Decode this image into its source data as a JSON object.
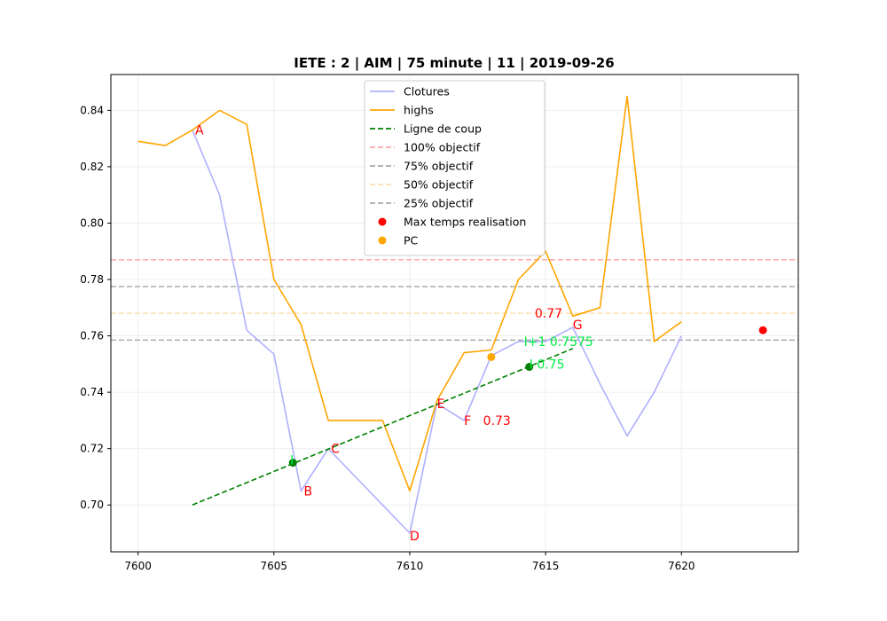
{
  "chart_data": {
    "type": "line",
    "title": "IETE : 2 | AIM | 75 minute | 11 | 2019-09-26",
    "xlabel": "",
    "ylabel": "",
    "xlim": [
      7599,
      7624.3
    ],
    "ylim": [
      0.6834,
      0.8527
    ],
    "xticks": [
      7600,
      7605,
      7610,
      7615,
      7620
    ],
    "xtick_labels": [
      "7600",
      "7605",
      "7610",
      "7615",
      "7620"
    ],
    "yticks": [
      0.7,
      0.72,
      0.74,
      0.76,
      0.78,
      0.8,
      0.82,
      0.84
    ],
    "ytick_labels": [
      "0.70",
      "0.72",
      "0.74",
      "0.76",
      "0.78",
      "0.80",
      "0.82",
      "0.84"
    ],
    "grid": true,
    "legend_position": "top-center",
    "series": [
      {
        "name": "Clotures",
        "color": "#b0b0ff",
        "style": "solid",
        "x": [
          7602,
          7603,
          7604,
          7605,
          7606,
          7607,
          7608,
          7609,
          7610,
          7611,
          7612,
          7613,
          7614,
          7615,
          7616,
          7617,
          7618,
          7619,
          7620
        ],
        "y": [
          0.833,
          0.81,
          0.762,
          0.7535,
          0.705,
          0.72,
          0.71,
          0.7,
          0.69,
          0.736,
          0.73,
          0.753,
          0.758,
          0.758,
          0.763,
          0.743,
          0.7245,
          0.74,
          0.76
        ]
      },
      {
        "name": "highs",
        "color": "#ffa500",
        "style": "solid",
        "x": [
          7600,
          7601,
          7602,
          7603,
          7604,
          7605,
          7606,
          7607,
          7608,
          7609,
          7610,
          7611,
          7612,
          7613,
          7614,
          7615,
          7616,
          7617,
          7618,
          7619,
          7620
        ],
        "y": [
          0.829,
          0.8275,
          0.833,
          0.84,
          0.835,
          0.78,
          0.764,
          0.73,
          0.73,
          0.73,
          0.705,
          0.737,
          0.754,
          0.755,
          0.78,
          0.79,
          0.767,
          0.77,
          0.845,
          0.758,
          0.765
        ]
      },
      {
        "name": "Ligne de coup",
        "color": "#008000",
        "style": "dashed",
        "x": [
          7602,
          7616
        ],
        "y": [
          0.7,
          0.7555
        ]
      }
    ],
    "hlines": [
      {
        "name": "100% objectif",
        "y": 0.787,
        "color": "#ffaaaa"
      },
      {
        "name": "75% objectif",
        "y": 0.7775,
        "color": "#aaaaaa"
      },
      {
        "name": "50% objectif",
        "y": 0.768,
        "color": "#ffe0b0"
      },
      {
        "name": "25% objectif",
        "y": 0.7585,
        "color": "#aaaaaa"
      }
    ],
    "scatter": [
      {
        "name": "Max temps realisation",
        "color": "#ff0000",
        "points": [
          [
            7623,
            0.762
          ]
        ]
      },
      {
        "name": "PC",
        "color": "#ffa500",
        "points": [
          [
            7613,
            0.7525
          ]
        ]
      }
    ],
    "extra_points": [
      {
        "color": "#008000",
        "points": [
          [
            7605.7,
            0.715
          ],
          [
            7614.4,
            0.749
          ]
        ]
      }
    ],
    "annotations": [
      {
        "text": "A",
        "x": 7602.1,
        "y": 0.833,
        "color": "#ff0000"
      },
      {
        "text": "B",
        "x": 7606.1,
        "y": 0.705,
        "color": "#ff0000"
      },
      {
        "text": "C",
        "x": 7607.1,
        "y": 0.72,
        "color": "#ff0000"
      },
      {
        "text": "D",
        "x": 7610.0,
        "y": 0.689,
        "color": "#ff0000"
      },
      {
        "text": "E",
        "x": 7611.0,
        "y": 0.736,
        "color": "#ff0000"
      },
      {
        "text": "F",
        "x": 7612.0,
        "y": 0.73,
        "color": "#ff0000"
      },
      {
        "text": "0.73",
        "x": 7612.7,
        "y": 0.73,
        "color": "#ff0000"
      },
      {
        "text": "G",
        "x": 7616.0,
        "y": 0.764,
        "color": "#ff0000"
      },
      {
        "text": "0.77",
        "x": 7614.6,
        "y": 0.768,
        "color": "#ff0000"
      },
      {
        "text": "I",
        "x": 7605.6,
        "y": 0.716,
        "color": "#00ee44"
      },
      {
        "text": "I+1 0.7575",
        "x": 7614.2,
        "y": 0.758,
        "color": "#00ee44"
      },
      {
        "text": "I 0.75",
        "x": 7614.4,
        "y": 0.75,
        "color": "#00ee44"
      }
    ]
  }
}
